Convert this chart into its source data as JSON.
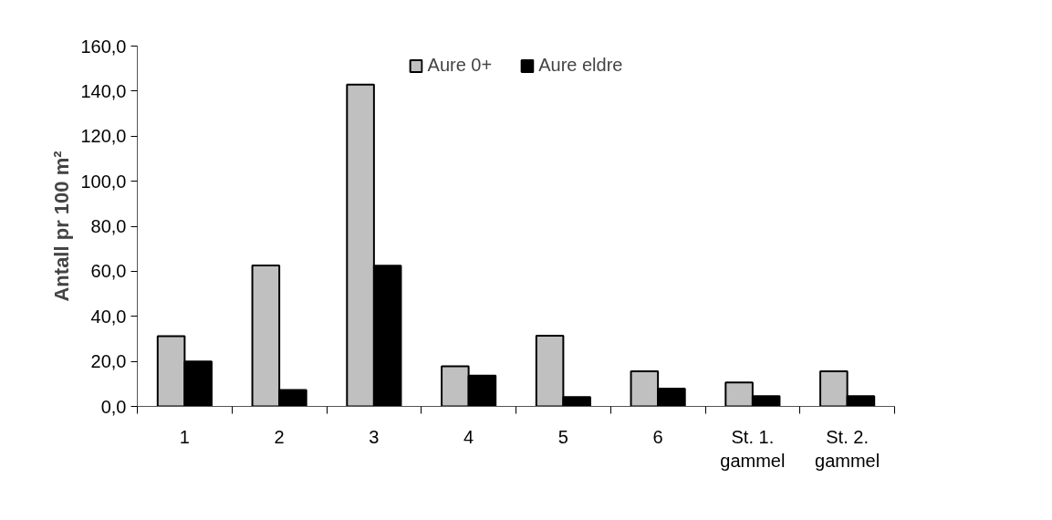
{
  "chart_data": {
    "type": "bar",
    "ylabel": "Antall pr 100 m²",
    "categories": [
      "1",
      "2",
      "3",
      "4",
      "5",
      "6",
      "St. 1.\ngammel",
      "St. 2.\ngammel"
    ],
    "series": [
      {
        "name": "Aure 0+",
        "color": "#c0c0c0",
        "values": [
          31.2,
          62.6,
          142.9,
          17.8,
          31.4,
          15.6,
          10.6,
          15.6
        ]
      },
      {
        "name": "Aure eldre",
        "color": "#000000",
        "values": [
          19.9,
          7.3,
          62.5,
          13.7,
          4.2,
          7.9,
          4.6,
          4.6
        ]
      }
    ],
    "ylim": [
      0,
      160
    ],
    "yticks": [
      {
        "value": 0,
        "label": "0,0"
      },
      {
        "value": 20,
        "label": "20,0"
      },
      {
        "value": 40,
        "label": "40,0"
      },
      {
        "value": 60,
        "label": "60,0"
      },
      {
        "value": 80,
        "label": "80,0"
      },
      {
        "value": 100,
        "label": "100,0"
      },
      {
        "value": 120,
        "label": "120,0"
      },
      {
        "value": 140,
        "label": "140,0"
      },
      {
        "value": 160,
        "label": "160,0"
      }
    ],
    "grid": false,
    "legend": "top"
  }
}
